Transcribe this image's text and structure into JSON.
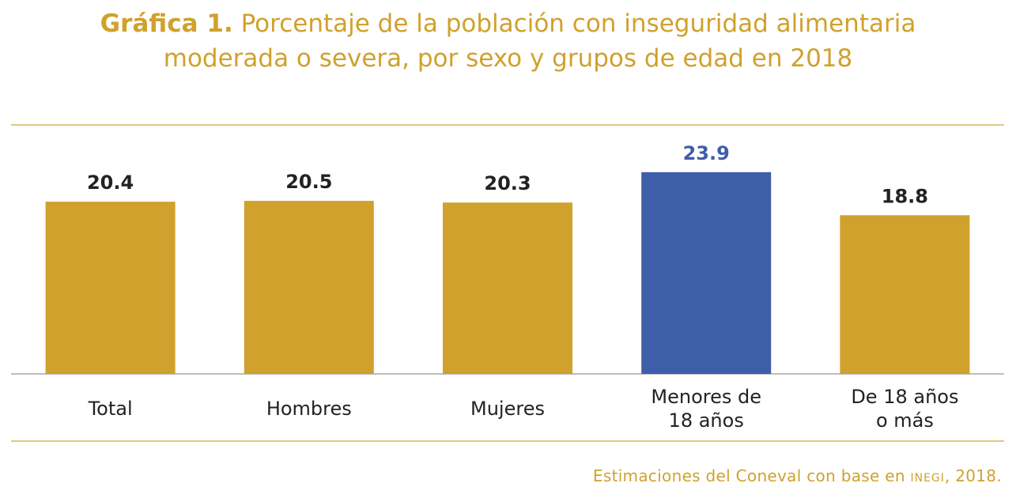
{
  "title": {
    "prefix": "Gráfica 1.",
    "line1": "Porcentaje de la población con inseguridad alimentaria",
    "line2": "moderada o severa, por sexo y grupos de edad en 2018"
  },
  "source": {
    "before": "Estimaciones del Coneval con base en ",
    "abbr": "INEGI",
    "after": ", 2018."
  },
  "colors": {
    "accent": "#d0a12c",
    "highlight": "#3f5ea9",
    "label": "#222222",
    "rule": "#d6b45c",
    "baseline": "#bdbdbd"
  },
  "chart_data": {
    "type": "bar",
    "categories": [
      [
        "Total"
      ],
      [
        "Hombres"
      ],
      [
        "Mujeres"
      ],
      [
        "Menores de",
        "18 años"
      ],
      [
        "De 18 años",
        "o más"
      ]
    ],
    "values": [
      20.4,
      20.5,
      20.3,
      23.9,
      18.8
    ],
    "highlighted_index": 3,
    "data_labels": [
      "20.4",
      "20.5",
      "20.3",
      "23.9",
      "18.8"
    ],
    "ylim": [
      0,
      29.5
    ],
    "grid": false,
    "legend": "none"
  }
}
